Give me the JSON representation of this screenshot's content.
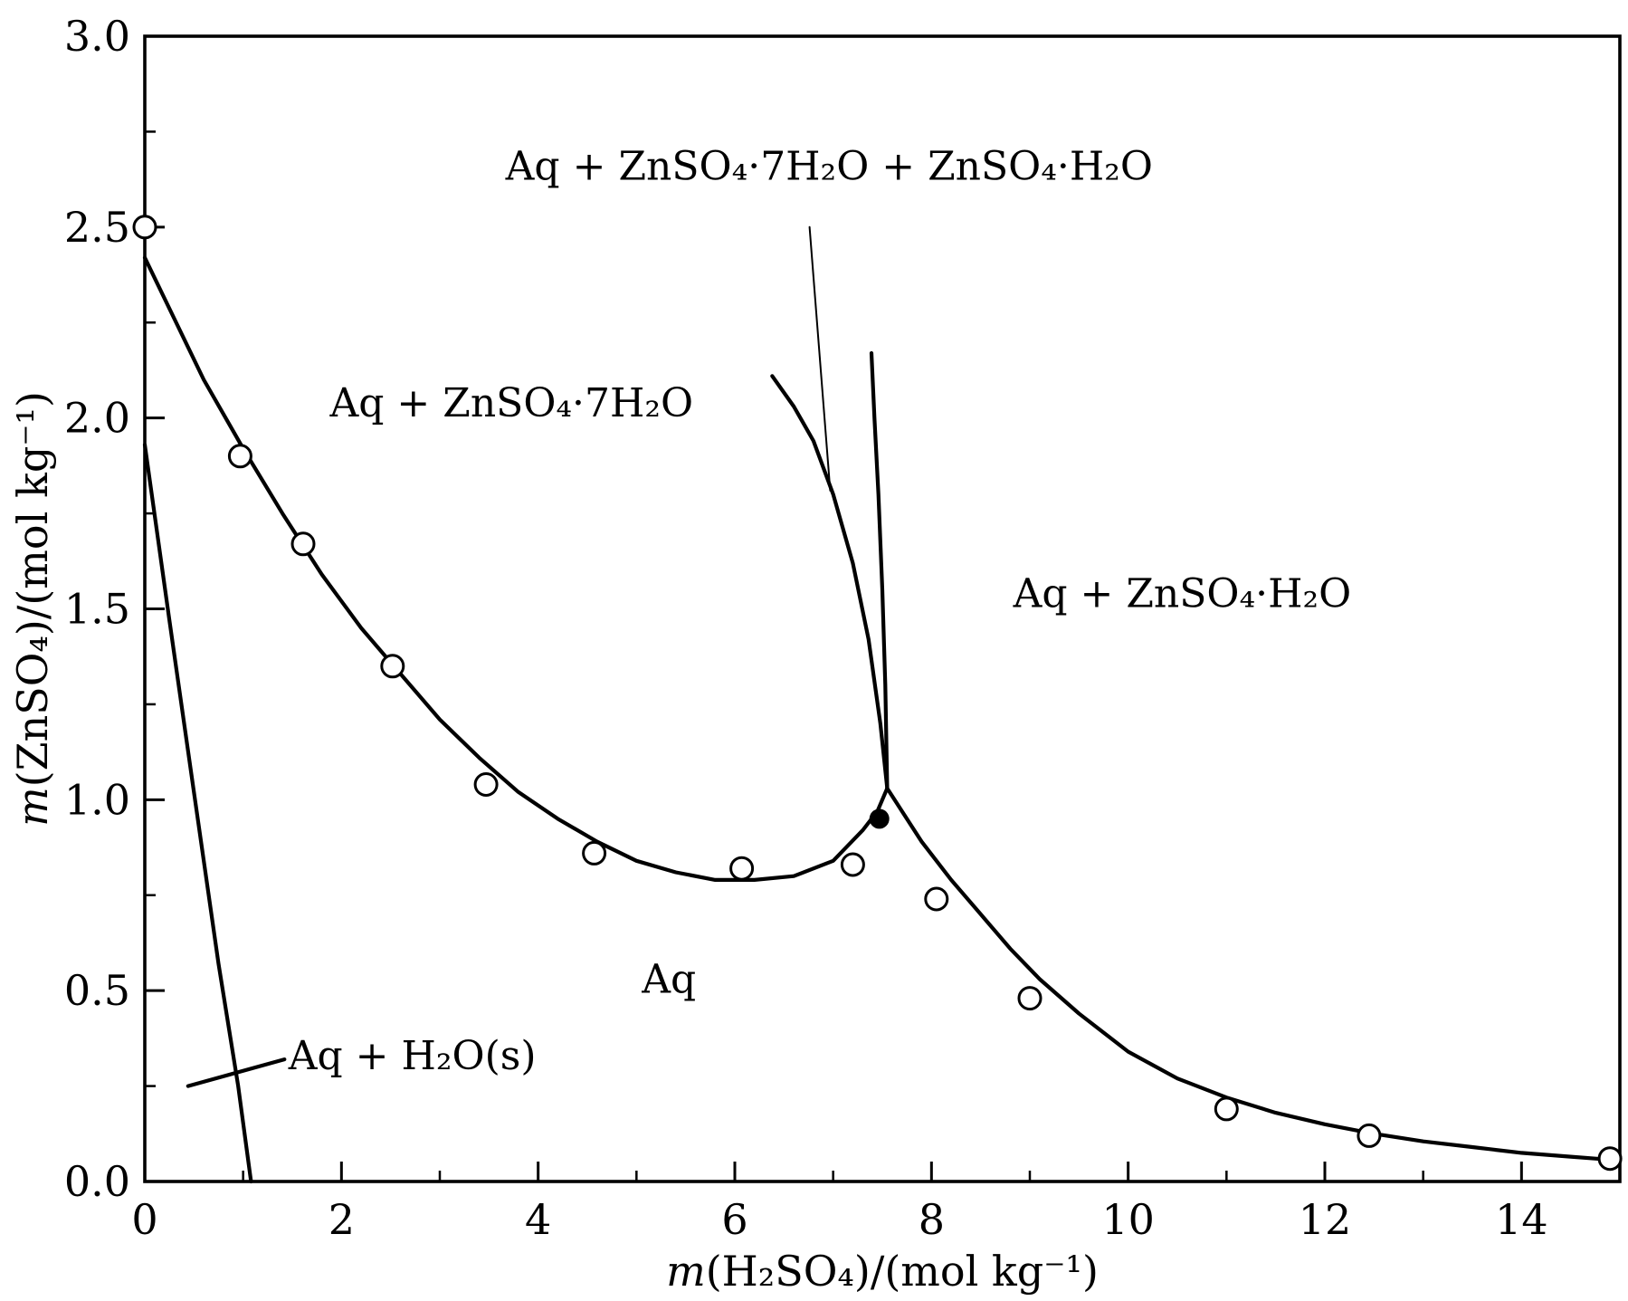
{
  "figure": {
    "background_color": "#ffffff",
    "line_color": "#000000"
  },
  "chart_data": {
    "type": "line",
    "description": "Phase diagram: solubility of ZnSO4 in aqueous H2SO4 with hydrate phase boundaries",
    "xlabel": {
      "italic": "m",
      "rest": "(H₂SO₄)/(mol kg⁻¹)"
    },
    "ylabel": {
      "italic": "m",
      "rest": "(ZnSO₄)/(mol kg⁻¹)"
    },
    "xlim": [
      0,
      15
    ],
    "ylim": [
      0,
      3
    ],
    "grid": false,
    "legend": null,
    "xticks": {
      "major": [
        0,
        2,
        4,
        6,
        8,
        10,
        12,
        14
      ],
      "labels": [
        "0",
        "2",
        "4",
        "6",
        "8",
        "10",
        "12",
        "14"
      ],
      "minor": [
        1,
        3,
        5,
        7,
        9,
        11,
        13,
        15
      ]
    },
    "yticks": {
      "major": [
        0,
        0.5,
        1.0,
        1.5,
        2.0,
        2.5,
        3.0
      ],
      "labels": [
        "0.0",
        "0.5",
        "1.0",
        "1.5",
        "2.0",
        "2.5",
        "3.0"
      ],
      "minor": [
        0.25,
        0.75,
        1.25,
        1.75,
        2.25,
        2.75
      ]
    },
    "curves": [
      {
        "name": "ice-solubility-boundary",
        "role": "phase-boundary",
        "width": "thick",
        "points": [
          [
            0,
            1.93
          ],
          [
            0.25,
            1.47
          ],
          [
            0.5,
            1.02
          ],
          [
            0.75,
            0.57
          ],
          [
            0.95,
            0.25
          ],
          [
            1.08,
            0.0
          ]
        ]
      },
      {
        "name": "ice-line-label-pointer",
        "role": "label-pointer",
        "width": "thick",
        "points": [
          [
            0.44,
            0.25
          ],
          [
            1.42,
            0.32
          ]
        ]
      },
      {
        "name": "znso4-7h2o-solubility",
        "role": "phase-boundary",
        "width": "thick",
        "points": [
          [
            0,
            2.42
          ],
          [
            0.3,
            2.26
          ],
          [
            0.6,
            2.1
          ],
          [
            1.0,
            1.92
          ],
          [
            1.4,
            1.75
          ],
          [
            1.8,
            1.59
          ],
          [
            2.2,
            1.45
          ],
          [
            2.6,
            1.33
          ],
          [
            3.0,
            1.21
          ],
          [
            3.4,
            1.11
          ],
          [
            3.8,
            1.02
          ],
          [
            4.2,
            0.95
          ],
          [
            4.6,
            0.89
          ],
          [
            5.0,
            0.84
          ],
          [
            5.4,
            0.81
          ],
          [
            5.8,
            0.79
          ],
          [
            6.2,
            0.79
          ],
          [
            6.6,
            0.8
          ],
          [
            7.0,
            0.84
          ],
          [
            7.3,
            0.92
          ],
          [
            7.45,
            0.97
          ],
          [
            7.55,
            1.03
          ]
        ]
      },
      {
        "name": "znso4-1h2o-solubility",
        "role": "phase-boundary",
        "width": "thick",
        "points": [
          [
            7.55,
            1.03
          ],
          [
            7.7,
            0.97
          ],
          [
            7.9,
            0.89
          ],
          [
            8.2,
            0.79
          ],
          [
            8.5,
            0.7
          ],
          [
            8.8,
            0.61
          ],
          [
            9.1,
            0.53
          ],
          [
            9.5,
            0.44
          ],
          [
            10.0,
            0.34
          ],
          [
            10.5,
            0.27
          ],
          [
            11.0,
            0.22
          ],
          [
            11.5,
            0.18
          ],
          [
            12.0,
            0.15
          ],
          [
            12.5,
            0.125
          ],
          [
            13.0,
            0.105
          ],
          [
            13.5,
            0.09
          ],
          [
            14.0,
            0.075
          ],
          [
            14.5,
            0.065
          ],
          [
            15.0,
            0.055
          ]
        ]
      },
      {
        "name": "three-phase-wedge-left-boundary",
        "role": "phase-boundary",
        "width": "thick",
        "points": [
          [
            7.55,
            1.03
          ],
          [
            7.48,
            1.2
          ],
          [
            7.36,
            1.42
          ],
          [
            7.2,
            1.62
          ],
          [
            7.0,
            1.8
          ],
          [
            6.8,
            1.94
          ],
          [
            6.6,
            2.03
          ],
          [
            6.38,
            2.11
          ]
        ]
      },
      {
        "name": "three-phase-wedge-right-boundary",
        "role": "phase-boundary",
        "width": "thick",
        "points": [
          [
            7.55,
            1.03
          ],
          [
            7.53,
            1.3
          ],
          [
            7.5,
            1.55
          ],
          [
            7.46,
            1.8
          ],
          [
            7.42,
            2.0
          ],
          [
            7.39,
            2.17
          ]
        ]
      },
      {
        "name": "three-phase-label-leader",
        "role": "leader-line",
        "width": "thin",
        "points": [
          [
            6.76,
            2.5
          ],
          [
            6.97,
            1.81
          ]
        ]
      }
    ],
    "scatter": {
      "open_points": [
        [
          0,
          2.5
        ],
        [
          0.97,
          1.9
        ],
        [
          1.61,
          1.67
        ],
        [
          2.52,
          1.35
        ],
        [
          3.47,
          1.04
        ],
        [
          4.57,
          0.86
        ],
        [
          6.07,
          0.82
        ],
        [
          7.2,
          0.83
        ],
        [
          8.05,
          0.74
        ],
        [
          9.0,
          0.48
        ],
        [
          11.0,
          0.19
        ],
        [
          12.45,
          0.12
        ],
        [
          14.9,
          0.06
        ]
      ],
      "filled_points": [
        [
          7.47,
          0.95
        ]
      ]
    },
    "region_labels": [
      {
        "text": "Aq + ZnSO₄·7H₂O + ZnSO₄·H₂O",
        "x": 6.96,
        "y": 2.66
      },
      {
        "text": "Aq + ZnSO₄·7H₂O",
        "x": 3.73,
        "y": 2.04
      },
      {
        "text": "Aq + ZnSO₄·H₂O",
        "x": 10.55,
        "y": 1.54
      },
      {
        "text": "Aq",
        "x": 5.33,
        "y": 0.53
      },
      {
        "text": "Aq + H₂O(s)",
        "x": 2.72,
        "y": 0.33
      }
    ]
  }
}
